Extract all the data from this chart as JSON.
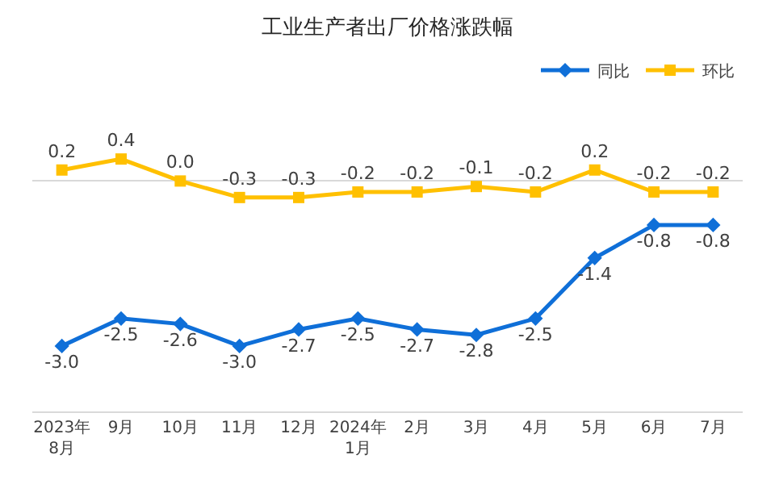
{
  "chart_data": {
    "type": "line",
    "title": "工业生产者出厂价格涨跌幅",
    "categories": [
      "2023年\n8月",
      "9月",
      "10月",
      "11月",
      "12月",
      "2024年\n1月",
      "2月",
      "3月",
      "4月",
      "5月",
      "6月",
      "7月"
    ],
    "series": [
      {
        "name": "同比",
        "color": "#0f6fd8",
        "marker": "diamond",
        "values": [
          -3.0,
          -2.5,
          -2.6,
          -3.0,
          -2.7,
          -2.5,
          -2.7,
          -2.8,
          -2.5,
          -1.4,
          -0.8,
          -0.8
        ],
        "value_labels": [
          "-3.0",
          "-2.5",
          "-2.6",
          "-3.0",
          "-2.7",
          "-2.5",
          "-2.7",
          "-2.8",
          "-2.5",
          "-1.4",
          "-0.8",
          "-0.8"
        ]
      },
      {
        "name": "环比",
        "color": "#ffc000",
        "marker": "square",
        "values": [
          0.2,
          0.4,
          0.0,
          -0.3,
          -0.3,
          -0.2,
          -0.2,
          -0.1,
          -0.2,
          0.2,
          -0.2,
          -0.2
        ],
        "value_labels": [
          "0.2",
          "0.4",
          "0.0",
          "-0.3",
          "-0.3",
          "-0.2",
          "-0.2",
          "-0.1",
          "-0.2",
          "0.2",
          "-0.2",
          "-0.2"
        ]
      }
    ],
    "tick_labels": "x",
    "legend": "top right",
    "line_style": "solid"
  }
}
